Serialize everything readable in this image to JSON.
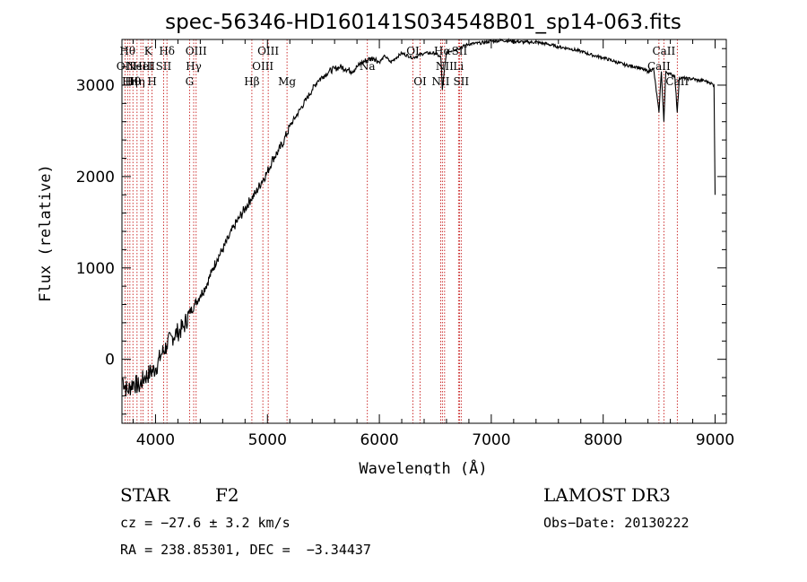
{
  "chart_data": {
    "type": "line",
    "title": "spec-56346-HD160141S034548B01_sp14-063.fits",
    "xlabel": "Wavelength (Å)",
    "ylabel": "Flux (relative)",
    "xlim": [
      3700,
      9100
    ],
    "ylim": [
      -700,
      3500
    ],
    "xticks": [
      4000,
      5000,
      6000,
      7000,
      8000,
      9000
    ],
    "yticks": [
      0,
      1000,
      2000,
      3000
    ],
    "grid": false,
    "series": [
      {
        "x": [
          3700,
          3750,
          3800,
          3850,
          3900,
          3950,
          4000,
          4050,
          4100,
          4150,
          4200,
          4250,
          4300,
          4350,
          4400,
          4450,
          4500,
          4550,
          4600,
          4650,
          4700,
          4750,
          4800,
          4850,
          4900,
          4950,
          5000,
          5050,
          5100,
          5150,
          5200,
          5250,
          5300,
          5350,
          5400,
          5450,
          5500,
          5550,
          5600,
          5650,
          5700,
          5750,
          5800,
          5850,
          5900,
          5950,
          6000,
          6050,
          6100,
          6150,
          6200,
          6300,
          6400,
          6500,
          6550,
          6563,
          6600,
          6700,
          6800,
          6900,
          7000,
          7100,
          7200,
          7300,
          7400,
          7500,
          7600,
          7700,
          7800,
          7900,
          8000,
          8100,
          8200,
          8300,
          8400,
          8450,
          8498,
          8520,
          8542,
          8560,
          8600,
          8640,
          8662,
          8680,
          8700,
          8750,
          8800,
          8850,
          8900,
          8950,
          8990,
          9000
        ],
        "values": [
          -200,
          -350,
          -250,
          -300,
          -200,
          -150,
          -100,
          50,
          150,
          250,
          300,
          350,
          500,
          600,
          700,
          800,
          950,
          1100,
          1200,
          1320,
          1450,
          1550,
          1650,
          1750,
          1830,
          1950,
          2050,
          2200,
          2280,
          2400,
          2550,
          2650,
          2750,
          2850,
          2950,
          3050,
          3100,
          3150,
          3180,
          3200,
          3180,
          3150,
          3200,
          3250,
          3280,
          3300,
          3250,
          3320,
          3250,
          3300,
          3350,
          3300,
          3350,
          3350,
          3300,
          2950,
          3360,
          3400,
          3450,
          3460,
          3480,
          3490,
          3480,
          3470,
          3470,
          3450,
          3420,
          3400,
          3370,
          3330,
          3300,
          3260,
          3220,
          3200,
          3150,
          3180,
          2700,
          3150,
          2600,
          3150,
          3120,
          3100,
          2700,
          3080,
          3080,
          3070,
          3070,
          3050,
          3050,
          3030,
          3000,
          1800
        ]
      }
    ],
    "lines": [
      {
        "x": 3727,
        "label": "OII",
        "row": 1
      },
      {
        "x": 3750,
        "label": "Hθ",
        "row": 0
      },
      {
        "x": 3771,
        "label": "Hη",
        "row": 2
      },
      {
        "x": 3798,
        "label": "Hθ",
        "row": 2
      },
      {
        "x": 3835,
        "label": "Hη",
        "row": 2
      },
      {
        "x": 3869,
        "label": "NeIII",
        "row": 1
      },
      {
        "x": 3889,
        "label": "HeI",
        "row": 1
      },
      {
        "x": 3934,
        "label": "K",
        "row": 0
      },
      {
        "x": 3969,
        "label": "H",
        "row": 2
      },
      {
        "x": 4072,
        "label": "SII",
        "row": 1
      },
      {
        "x": 4102,
        "label": "Hδ",
        "row": 0
      },
      {
        "x": 4304,
        "label": "G",
        "row": 2
      },
      {
        "x": 4341,
        "label": "Hγ",
        "row": 1
      },
      {
        "x": 4363,
        "label": "OIII",
        "row": 0
      },
      {
        "x": 4861,
        "label": "Hβ",
        "row": 2
      },
      {
        "x": 4959,
        "label": "OIII",
        "row": 1
      },
      {
        "x": 5007,
        "label": "OIII",
        "row": 0
      },
      {
        "x": 5175,
        "label": "Mg",
        "row": 2
      },
      {
        "x": 5893,
        "label": "Na",
        "row": 1
      },
      {
        "x": 6300,
        "label": "OI",
        "row": 0
      },
      {
        "x": 6364,
        "label": "OI",
        "row": 2
      },
      {
        "x": 6548,
        "label": "NII",
        "row": 2
      },
      {
        "x": 6563,
        "label": "Hα",
        "row": 0
      },
      {
        "x": 6583,
        "label": "NII",
        "row": 1
      },
      {
        "x": 6707,
        "label": "Li",
        "row": 1
      },
      {
        "x": 6716,
        "label": "SII",
        "row": 0
      },
      {
        "x": 6731,
        "label": "SII",
        "row": 2
      },
      {
        "x": 8498,
        "label": "CaII",
        "row": 1
      },
      {
        "x": 8542,
        "label": "CaII",
        "row": 0
      },
      {
        "x": 8662,
        "label": "CaII",
        "row": 2
      }
    ]
  },
  "info": {
    "class": "STAR",
    "subclass": "F2",
    "survey": "LAMOST DR3",
    "cz": "cz = −27.6 ± 3.2 km/s",
    "obs_date": "Obs−Date: 20130222",
    "radec": "RA = 238.85301, DEC =  −3.34437"
  },
  "colors": {
    "line_marker": "#c00000",
    "spectrum": "#000000"
  }
}
